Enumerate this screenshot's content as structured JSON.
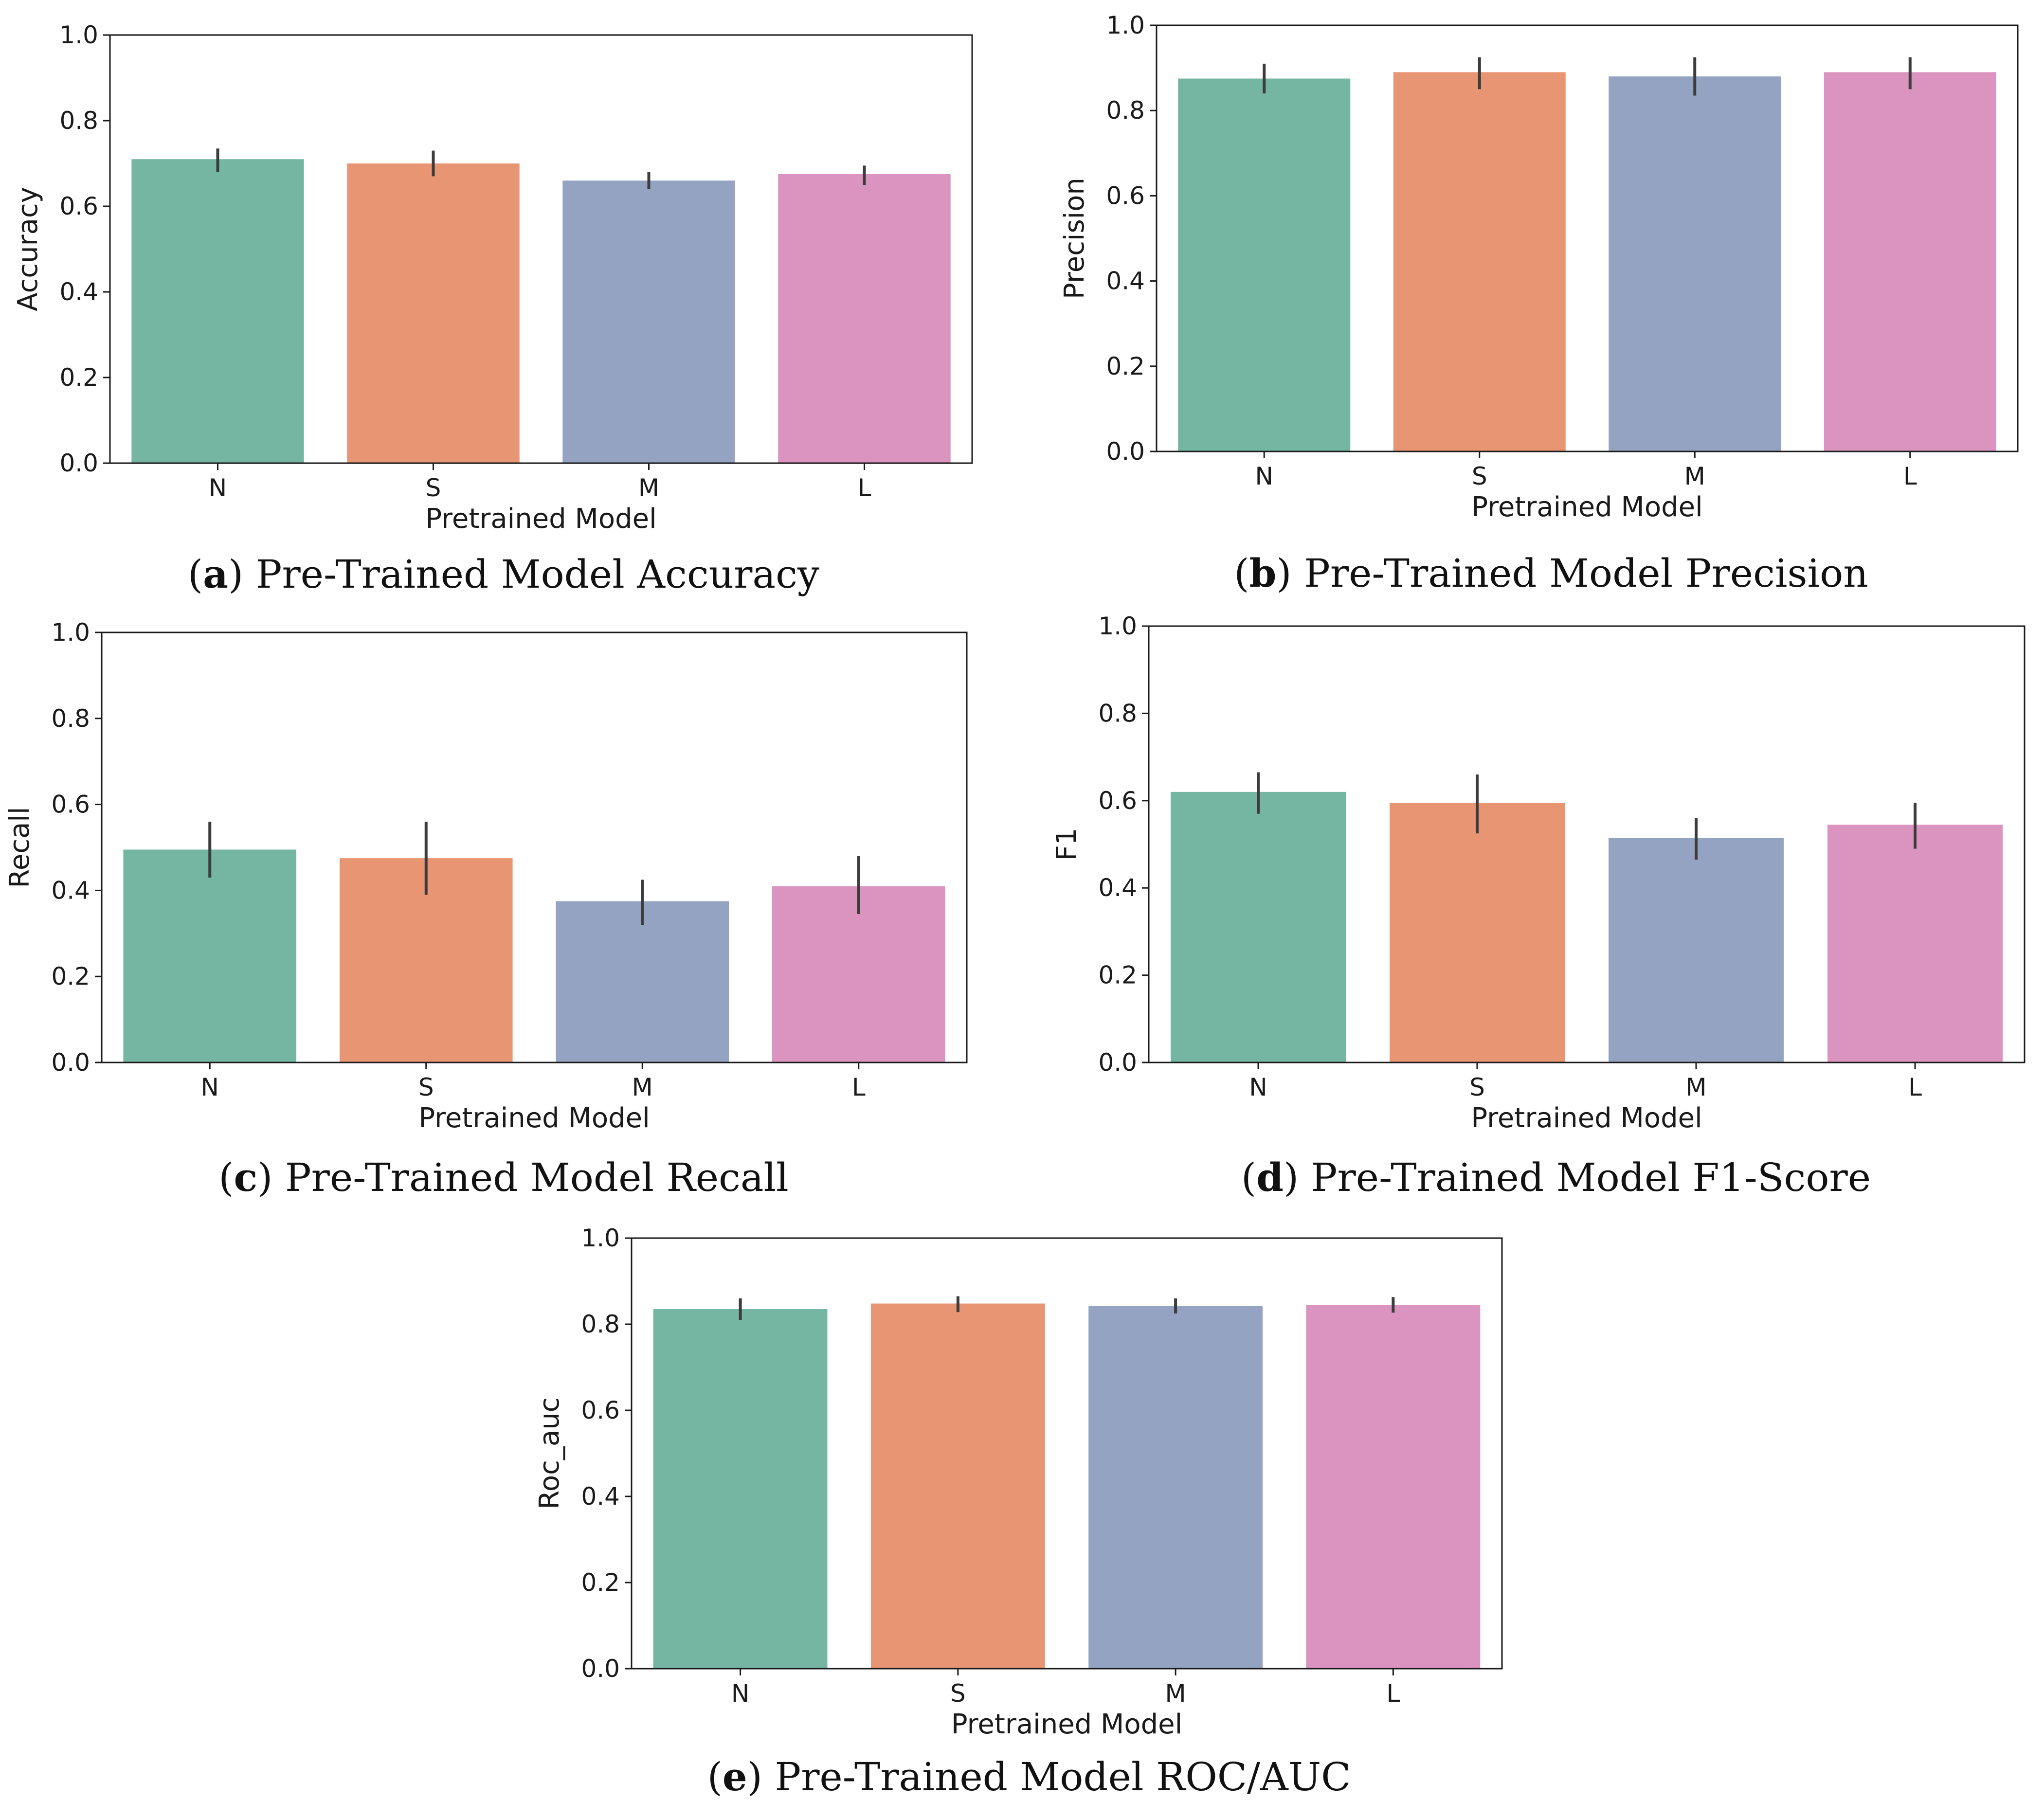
{
  "colors": {
    "N": "#74b6a1",
    "S": "#e89574",
    "M": "#94a3c2",
    "L": "#db94bf",
    "errorbar": "#3c3c3c",
    "axis": "#1a1a1a"
  },
  "chart_data": [
    {
      "type": "bar",
      "categories": [
        "N",
        "S",
        "M",
        "L"
      ],
      "values": [
        0.71,
        0.7,
        0.66,
        0.675
      ],
      "error_low": [
        0.68,
        0.67,
        0.64,
        0.65
      ],
      "error_high": [
        0.735,
        0.73,
        0.68,
        0.695
      ],
      "xlabel": "Pretrained Model",
      "ylabel": "Accuracy",
      "ylim": [
        0,
        1.0
      ],
      "yticks": [
        "0.0",
        "0.2",
        "0.4",
        "0.6",
        "0.8",
        "1.0"
      ],
      "caption_letter": "a",
      "caption_text": "Pre-Trained Model Accuracy",
      "grid": false
    },
    {
      "type": "bar",
      "categories": [
        "N",
        "S",
        "M",
        "L"
      ],
      "values": [
        0.875,
        0.89,
        0.88,
        0.89
      ],
      "error_low": [
        0.84,
        0.85,
        0.835,
        0.85
      ],
      "error_high": [
        0.91,
        0.925,
        0.925,
        0.925
      ],
      "xlabel": "Pretrained Model",
      "ylabel": "Precision",
      "ylim": [
        0,
        1.0
      ],
      "yticks": [
        "0.0",
        "0.2",
        "0.4",
        "0.6",
        "0.8",
        "1.0"
      ],
      "caption_letter": "b",
      "caption_text": "Pre-Trained Model Precision",
      "grid": false
    },
    {
      "type": "bar",
      "categories": [
        "N",
        "S",
        "M",
        "L"
      ],
      "values": [
        0.495,
        0.475,
        0.375,
        0.41
      ],
      "error_low": [
        0.43,
        0.39,
        0.32,
        0.345
      ],
      "error_high": [
        0.56,
        0.56,
        0.425,
        0.48
      ],
      "xlabel": "Pretrained Model",
      "ylabel": "Recall",
      "ylim": [
        0,
        1.0
      ],
      "yticks": [
        "0.0",
        "0.2",
        "0.4",
        "0.6",
        "0.8",
        "1.0"
      ],
      "caption_letter": "c",
      "caption_text": "Pre-Trained Model Recall",
      "grid": false
    },
    {
      "type": "bar",
      "categories": [
        "N",
        "S",
        "M",
        "L"
      ],
      "values": [
        0.62,
        0.595,
        0.515,
        0.545
      ],
      "error_low": [
        0.57,
        0.525,
        0.465,
        0.49
      ],
      "error_high": [
        0.665,
        0.66,
        0.56,
        0.595
      ],
      "xlabel": "Pretrained Model",
      "ylabel": "F1",
      "ylim": [
        0,
        1.0
      ],
      "yticks": [
        "0.0",
        "0.2",
        "0.4",
        "0.6",
        "0.8",
        "1.0"
      ],
      "caption_letter": "d",
      "caption_text": "Pre-Trained Model F1-Score",
      "grid": false
    },
    {
      "type": "bar",
      "categories": [
        "N",
        "S",
        "M",
        "L"
      ],
      "values": [
        0.835,
        0.848,
        0.842,
        0.845
      ],
      "error_low": [
        0.81,
        0.828,
        0.825,
        0.827
      ],
      "error_high": [
        0.86,
        0.865,
        0.86,
        0.863
      ],
      "xlabel": "Pretrained Model",
      "ylabel": "Roc_auc",
      "ylim": [
        0,
        1.0
      ],
      "yticks": [
        "0.0",
        "0.2",
        "0.4",
        "0.6",
        "0.8",
        "1.0"
      ],
      "caption_letter": "e",
      "caption_text": "Pre-Trained Model ROC/AUC",
      "grid": false
    }
  ]
}
